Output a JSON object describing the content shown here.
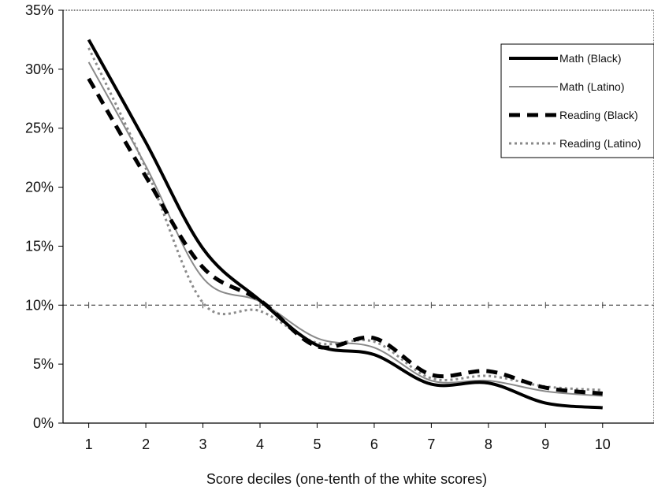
{
  "chart_data": {
    "type": "line",
    "title": "",
    "xlabel": "Score deciles (one-tenth of the white scores)",
    "ylabel": "",
    "x": [
      1,
      2,
      3,
      4,
      5,
      6,
      7,
      8,
      9,
      10
    ],
    "xlim": [
      0.55,
      10.9
    ],
    "ylim": [
      0,
      35
    ],
    "y_ticks": [
      0,
      5,
      10,
      15,
      20,
      25,
      30,
      35
    ],
    "y_tick_labels": [
      "0%",
      "5%",
      "10%",
      "15%",
      "20%",
      "25%",
      "30%",
      "35%"
    ],
    "x_tick_labels": [
      "1",
      "2",
      "3",
      "4",
      "5",
      "6",
      "7",
      "8",
      "9",
      "10"
    ],
    "reference_line": 10,
    "grid": false,
    "legend_position": "top-right",
    "series": [
      {
        "name": "Math (Black)",
        "values": [
          32.5,
          23.8,
          14.8,
          10.4,
          6.6,
          5.8,
          3.3,
          3.4,
          1.7,
          1.3
        ],
        "color": "#000000",
        "style": "thick-solid"
      },
      {
        "name": "Math (Latino)",
        "values": [
          30.6,
          21.8,
          12.3,
          10.3,
          7.2,
          6.4,
          3.6,
          3.6,
          2.7,
          2.3
        ],
        "color": "#8a8a8a",
        "style": "thin-solid"
      },
      {
        "name": "Reading (Black)",
        "values": [
          29.2,
          20.9,
          13.2,
          10.4,
          6.5,
          7.2,
          4.1,
          4.4,
          3.0,
          2.5
        ],
        "color": "#000000",
        "style": "thick-dashed"
      },
      {
        "name": "Reading (Latino)",
        "values": [
          31.8,
          21.6,
          10.2,
          9.5,
          6.8,
          6.9,
          3.8,
          4.0,
          3.1,
          2.8
        ],
        "color": "#8a8a8a",
        "style": "dotted"
      }
    ]
  }
}
